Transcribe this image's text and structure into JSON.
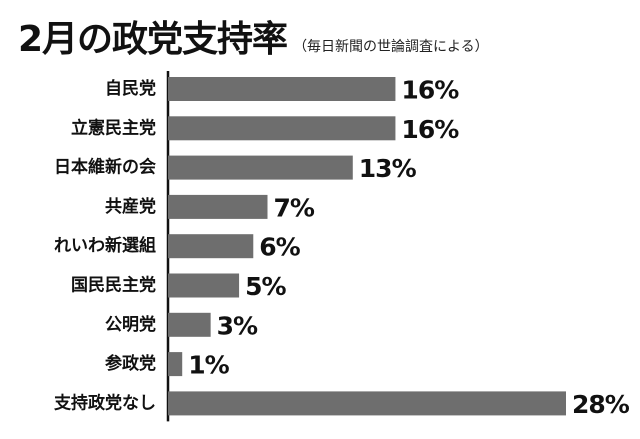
{
  "colors": {
    "bar": "#6e6e6e",
    "text": "#111111",
    "background": "#ffffff"
  },
  "chart_data": {
    "type": "bar",
    "orientation": "horizontal",
    "title": "2月の政党支持率",
    "subtitle": "（毎日新聞の世論調査による）",
    "xlabel": "",
    "ylabel": "",
    "xlim": [
      0,
      28
    ],
    "grid": false,
    "legend": "none",
    "unit": "%",
    "categories": [
      "自民党",
      "立憲民主党",
      "日本維新の会",
      "共産党",
      "れいわ新選組",
      "国民民主党",
      "公明党",
      "参政党",
      "支持政党なし"
    ],
    "values": [
      16,
      16,
      13,
      7,
      6,
      5,
      3,
      1,
      28
    ],
    "value_labels": [
      "16%",
      "16%",
      "13%",
      "7%",
      "6%",
      "5%",
      "3%",
      "1%",
      "28%"
    ]
  }
}
